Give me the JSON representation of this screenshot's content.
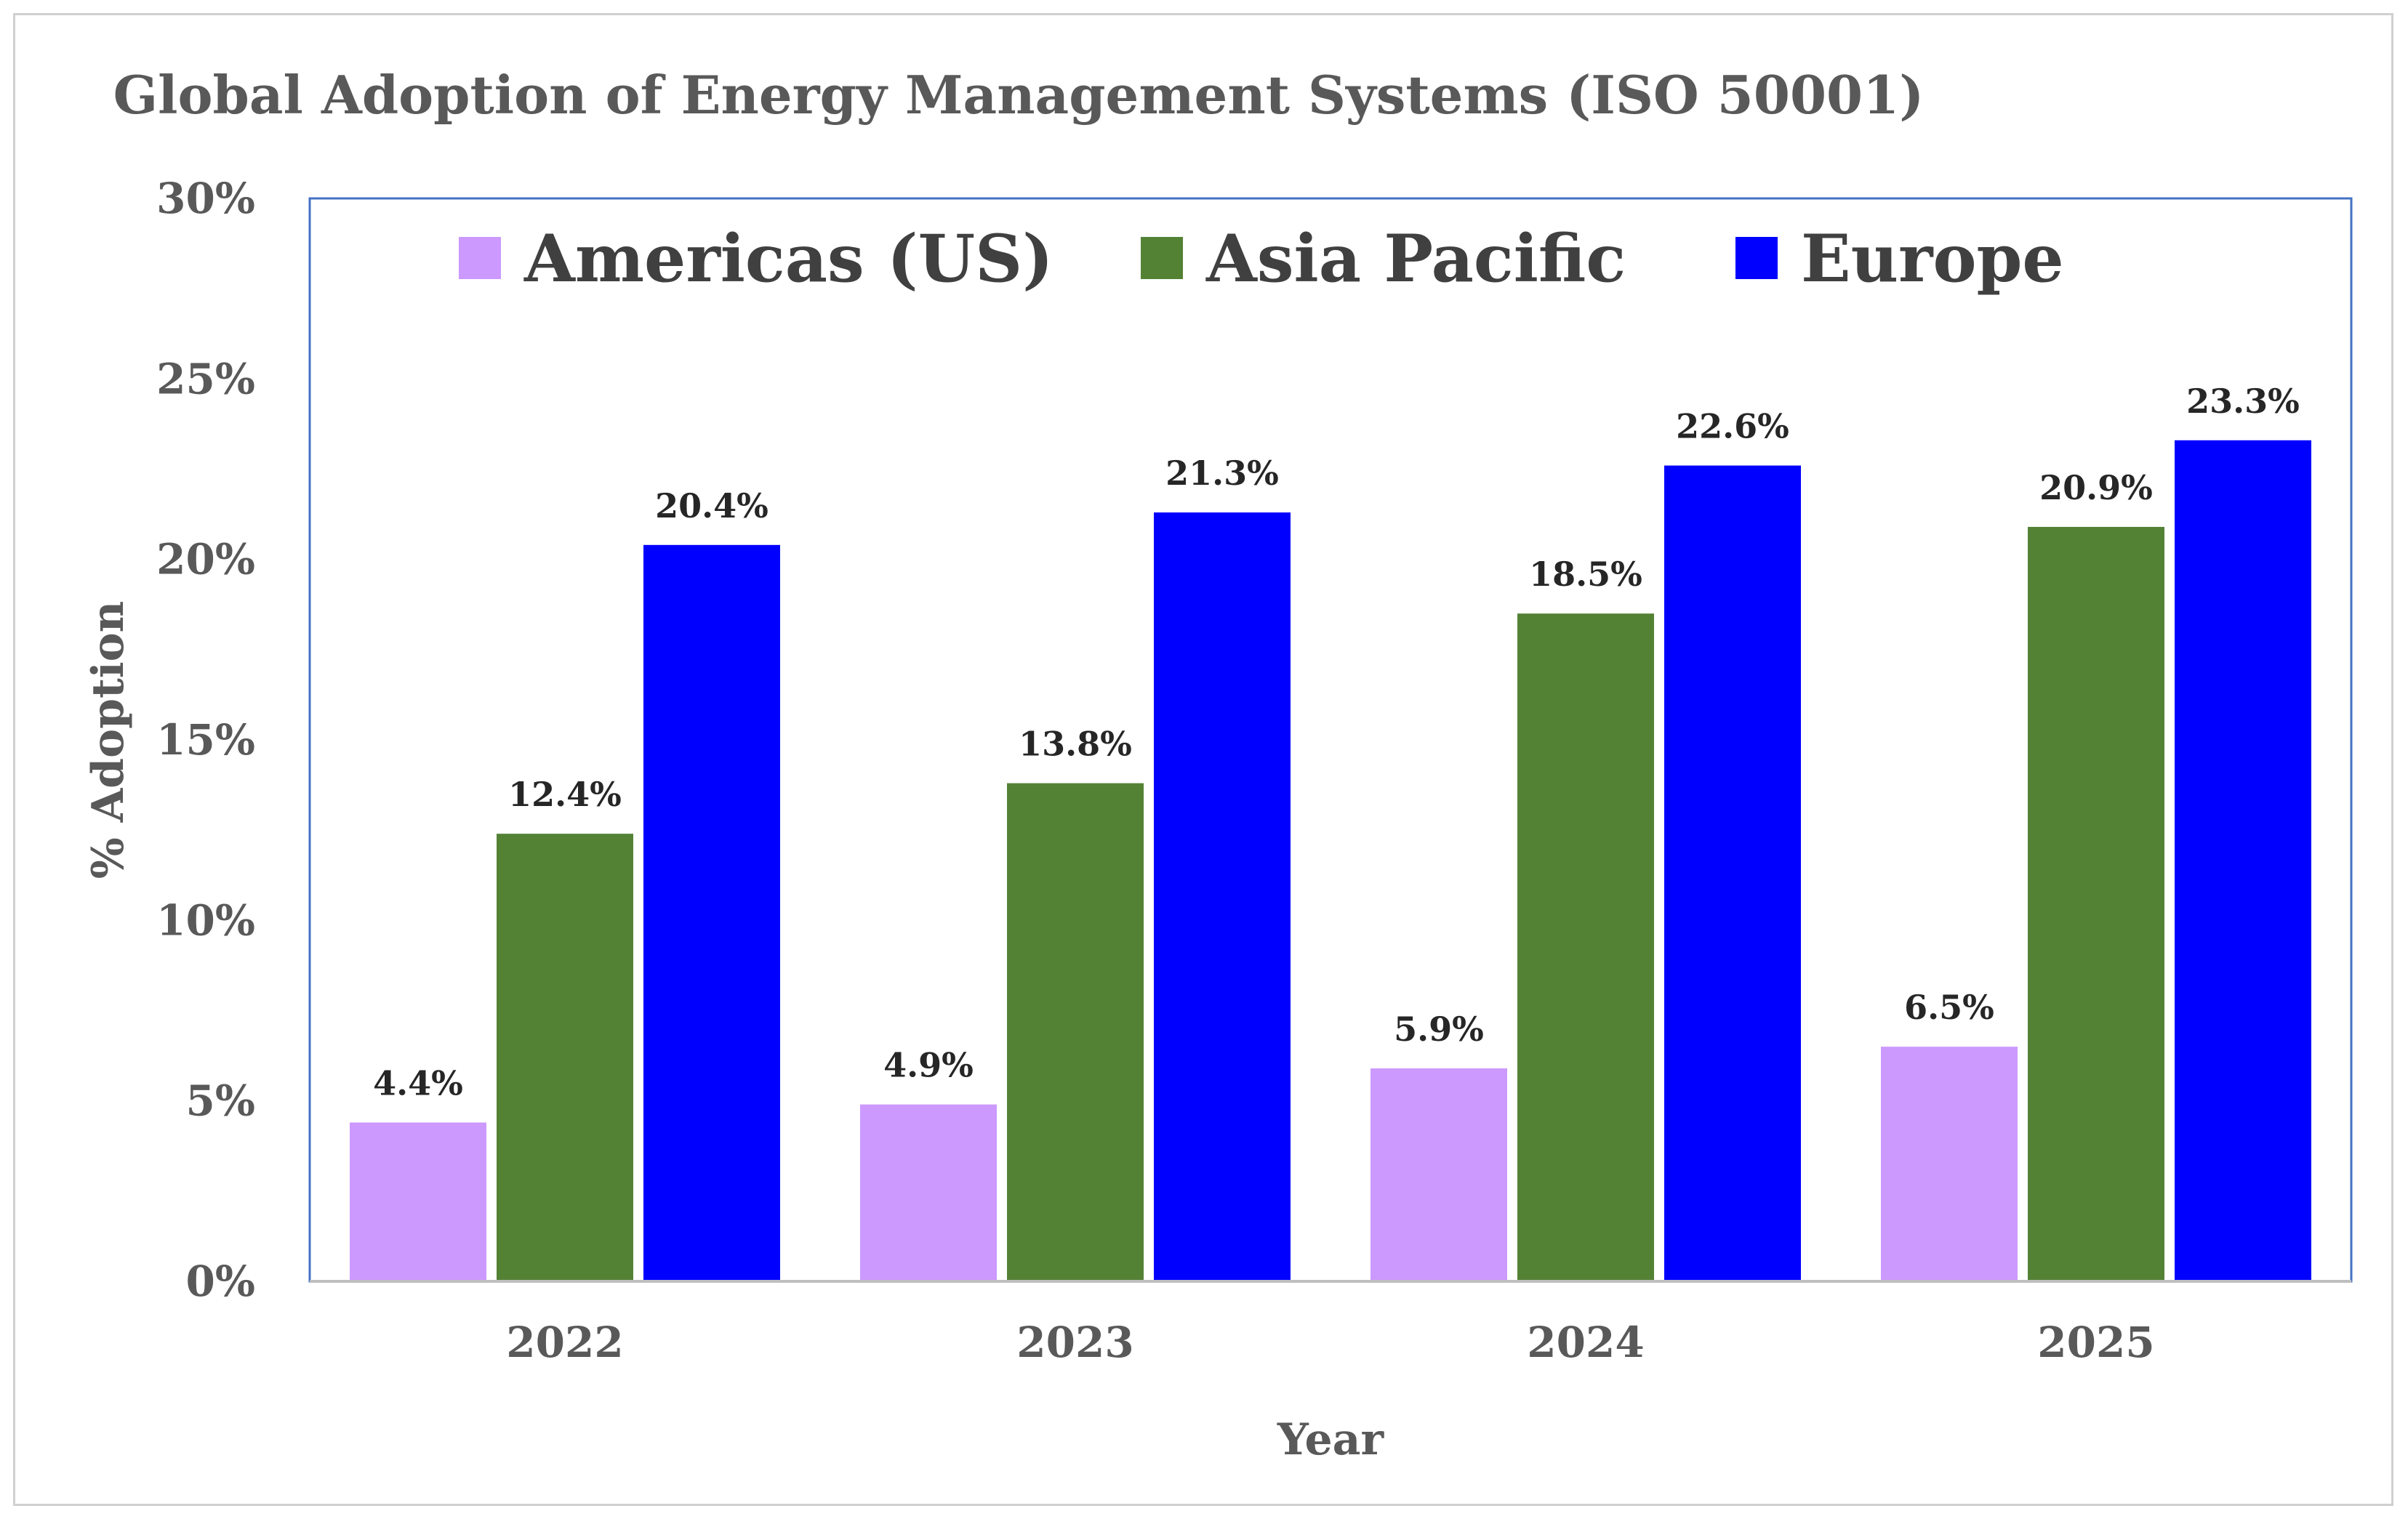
{
  "chart_data": {
    "type": "bar",
    "title": "Global Adoption of Energy Management Systems (ISO 50001)",
    "xlabel": "Year",
    "ylabel": "% Adoption",
    "categories": [
      "2022",
      "2023",
      "2024",
      "2025"
    ],
    "series": [
      {
        "name": "Americas (US)",
        "color": "#cc99ff",
        "values": [
          4.4,
          4.9,
          5.9,
          6.5
        ],
        "labels": [
          "4.4%",
          "4.9%",
          "5.9%",
          "6.5%"
        ]
      },
      {
        "name": "Asia Pacific",
        "color": "#548235",
        "values": [
          12.4,
          13.8,
          18.5,
          20.9
        ],
        "labels": [
          "12.4%",
          "13.8%",
          "18.5%",
          "20.9%"
        ]
      },
      {
        "name": "Europe",
        "color": "#0000ff",
        "values": [
          20.4,
          21.3,
          22.6,
          23.3
        ],
        "labels": [
          "20.4%",
          "21.3%",
          "22.6%",
          "23.3%"
        ]
      }
    ],
    "ylim": [
      0,
      30
    ],
    "yticks": [
      "0%",
      "5%",
      "10%",
      "15%",
      "20%",
      "25%",
      "30%"
    ],
    "grid": false,
    "legend": "top"
  },
  "colors": {
    "plot_border": "#4472c4",
    "axis_line": "#bfbfbf",
    "text": "#595959"
  }
}
